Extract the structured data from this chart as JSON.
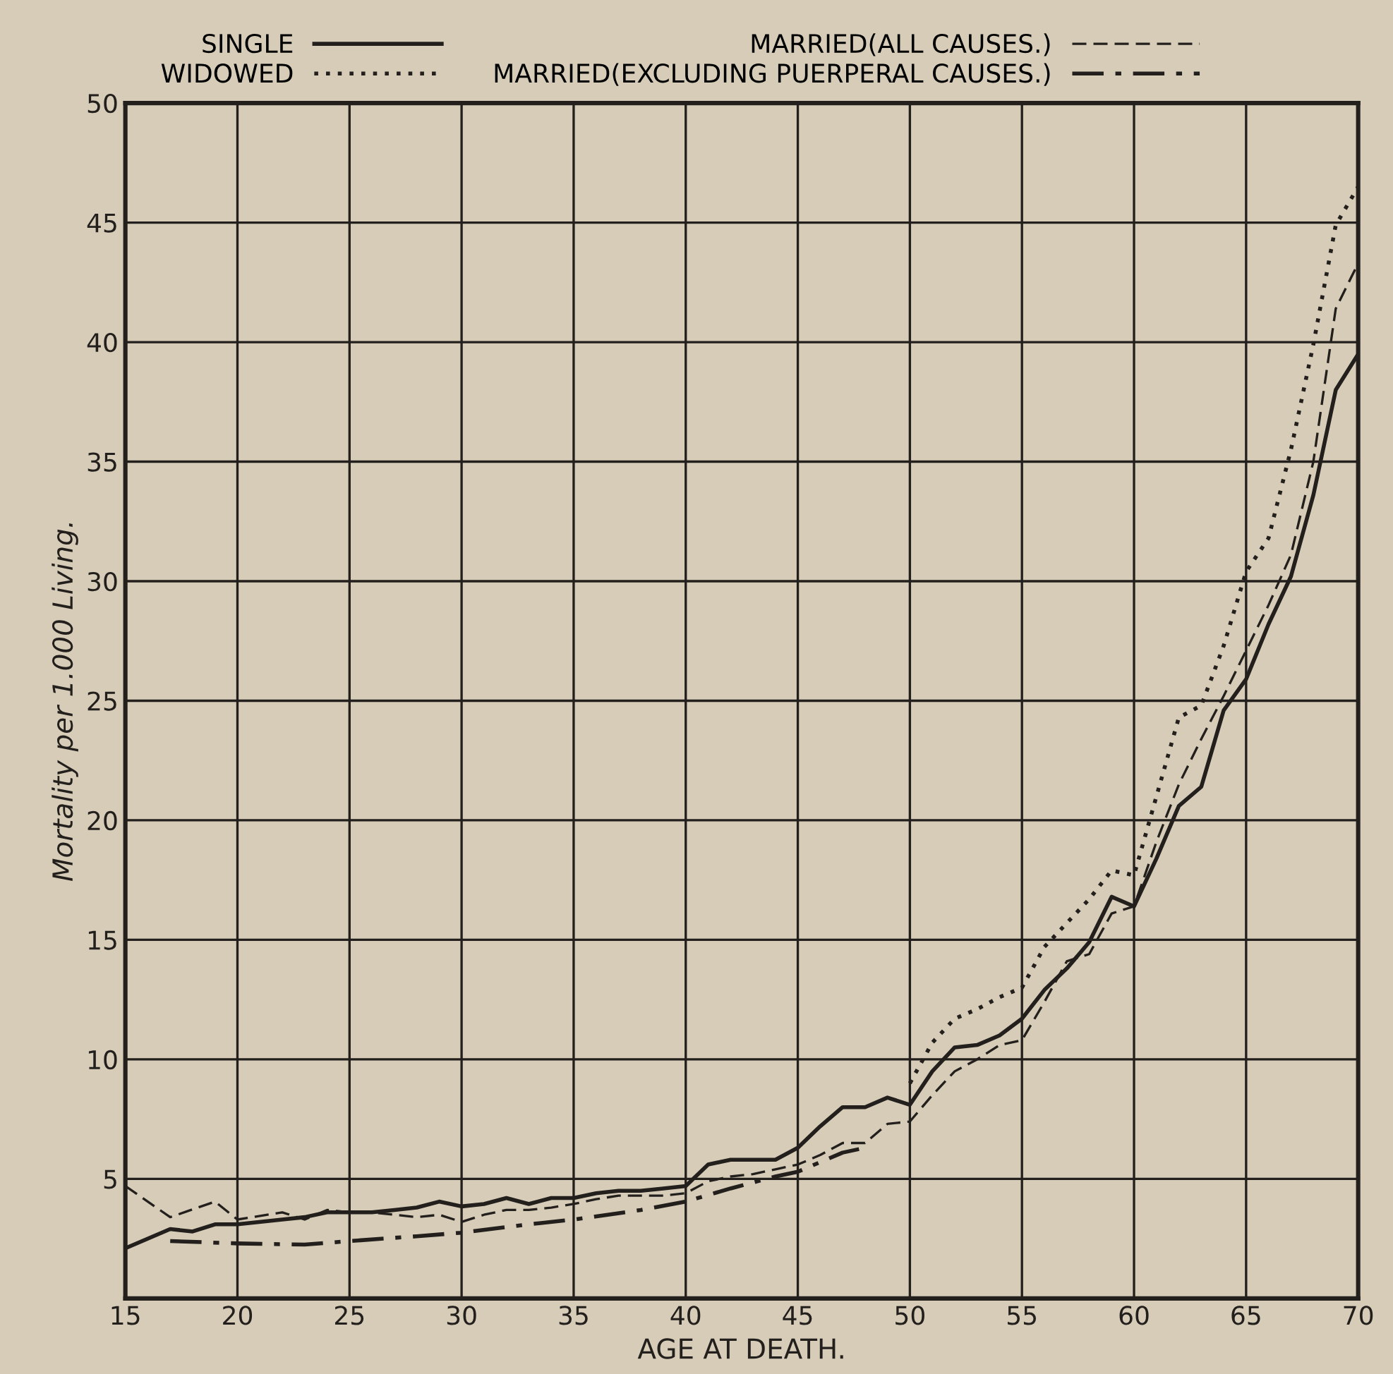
{
  "chart_data": {
    "type": "line",
    "xlabel": "AGE AT DEATH.",
    "ylabel": "Mortality per 1.000 Living.",
    "xlim": [
      15,
      70
    ],
    "xticks": [
      15,
      20,
      25,
      30,
      35,
      40,
      45,
      50,
      55,
      60,
      65,
      70
    ],
    "ylim": [
      0,
      50
    ],
    "yticks": [
      5,
      10,
      15,
      20,
      25,
      30,
      35,
      40,
      45,
      50
    ],
    "grid": true,
    "legend": "top",
    "marker": "none",
    "series": [
      {
        "name": "SINGLE",
        "color": "#231f1c",
        "line_style": "solid",
        "x": [
          15,
          17,
          18,
          19,
          20,
          22,
          23,
          24,
          25,
          26,
          27,
          28,
          29,
          30,
          31,
          32,
          33,
          34,
          35,
          36,
          37,
          38,
          39,
          40,
          41,
          42,
          43,
          44,
          45,
          46,
          47,
          48,
          49,
          50,
          51,
          52,
          53,
          54,
          55,
          56,
          57,
          58,
          59,
          60,
          61,
          62,
          63,
          64,
          65,
          66,
          67,
          68,
          69,
          70
        ],
        "values": [
          2.1,
          2.9,
          2.8,
          3.1,
          3.1,
          3.3,
          3.4,
          3.6,
          3.6,
          3.6,
          3.7,
          3.8,
          4.05,
          3.85,
          3.95,
          4.2,
          3.95,
          4.2,
          4.2,
          4.4,
          4.5,
          4.5,
          4.6,
          4.7,
          5.6,
          5.8,
          5.8,
          5.8,
          6.3,
          7.2,
          8.0,
          8.0,
          8.4,
          8.1,
          9.5,
          10.5,
          10.6,
          11.0,
          11.7,
          12.9,
          13.8,
          14.9,
          16.8,
          16.4,
          18.4,
          20.6,
          21.4,
          24.6,
          25.9,
          28.2,
          30.2,
          33.6,
          38.0,
          39.5
        ]
      },
      {
        "name": "WIDOWED",
        "color": "#231f1c",
        "line_style": "dotted",
        "x": [
          50,
          51,
          52,
          53,
          54,
          55,
          56,
          57,
          58,
          59,
          60,
          61,
          62,
          63,
          64,
          65,
          66,
          67,
          68,
          69,
          70
        ],
        "values": [
          9.0,
          10.7,
          11.7,
          12.1,
          12.6,
          13.0,
          14.7,
          15.7,
          16.7,
          17.9,
          17.7,
          21.0,
          24.3,
          24.8,
          27.3,
          30.4,
          31.8,
          35.5,
          39.9,
          44.9,
          46.5
        ]
      },
      {
        "name": "MARRIED(ALL CAUSES.)",
        "color": "#231f1c",
        "line_style": "dashed",
        "x": [
          15,
          17,
          19,
          20,
          22,
          23,
          24,
          25,
          26,
          27,
          28,
          29,
          30,
          31,
          32,
          33,
          34,
          35,
          36,
          37,
          38,
          39,
          40,
          41,
          42,
          43,
          44,
          45,
          46,
          47,
          48,
          49,
          50,
          51,
          52,
          53,
          54,
          55,
          56,
          57,
          58,
          59,
          60,
          61,
          62,
          63,
          64,
          65,
          66,
          67,
          68,
          69,
          70
        ],
        "values": [
          4.7,
          3.4,
          4.05,
          3.3,
          3.6,
          3.3,
          3.7,
          3.6,
          3.6,
          3.5,
          3.4,
          3.5,
          3.2,
          3.5,
          3.7,
          3.7,
          3.8,
          3.95,
          4.15,
          4.3,
          4.3,
          4.3,
          4.4,
          4.9,
          5.1,
          5.2,
          5.4,
          5.6,
          6.0,
          6.5,
          6.5,
          7.3,
          7.4,
          8.5,
          9.5,
          10.0,
          10.6,
          10.8,
          12.4,
          14.1,
          14.4,
          16.1,
          16.4,
          19.1,
          21.5,
          23.4,
          25.2,
          27.1,
          29.0,
          31.1,
          35.0,
          41.4,
          43.3
        ]
      },
      {
        "name": "MARRIED(EXCLUDING PUERPERAL CAUSES.)",
        "color": "#231f1c",
        "line_style": "dashdot",
        "x": [
          17,
          20,
          23,
          25,
          28,
          30,
          33,
          35,
          38,
          40,
          42,
          44,
          45,
          46,
          47,
          48
        ],
        "values": [
          2.4,
          2.3,
          2.25,
          2.4,
          2.6,
          2.75,
          3.1,
          3.3,
          3.7,
          4.05,
          4.6,
          5.1,
          5.3,
          5.7,
          6.1,
          6.3
        ]
      }
    ]
  }
}
